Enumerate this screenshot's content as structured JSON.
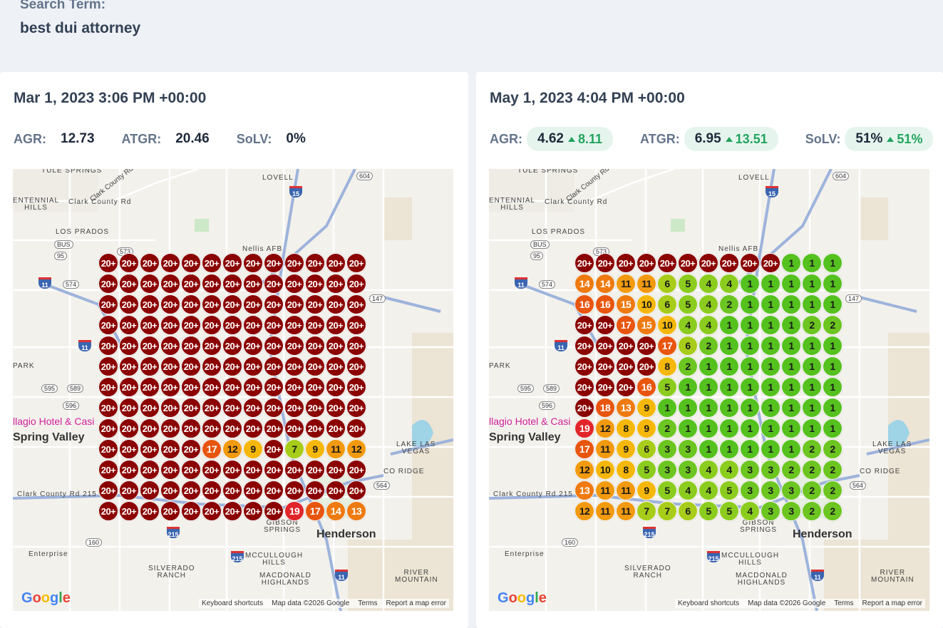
{
  "search": {
    "label": "Search Term:",
    "value": "best dui attorney"
  },
  "colors": {
    "accent_positive": "#22a45d",
    "pill_bg": "#e5f5ee",
    "panel_bg": "#ffffff",
    "page_bg": "#eef1f6"
  },
  "map_common": {
    "labels": {
      "tule_springs": "TULE SPRINGS",
      "lovell": "LOVELL",
      "centennial": "ENTENNIAL\nHILLS",
      "los_prados": "LOS PRADOS",
      "nellis": "Nellis AFB",
      "park": "PARK",
      "hotel": "llagio Hotel & Casi",
      "spring_valley": "Spring Valley",
      "lake_las_vegas": "LAKE LAS\nVEGAS",
      "co_ridge": "CO RIDGE",
      "gibson": "GIBSON\nSPRINGS",
      "henderson": "Henderson",
      "enterprise": "Enterprise",
      "silverado": "SILVERADO\nRANCH",
      "mccullough": "MCCULLOUGH\nHILLS",
      "macdonald": "MACDONALD\nHIGHLANDS",
      "river_mountain": "RIVER\nMOUNTAIN",
      "clark_rd_215_top": "Clark County Rd 215",
      "clark_rd": "Clark County Rd",
      "clark_rd_215_bottom": "Clark County Rd 215"
    },
    "shields": {
      "s604": "604",
      "s573": "573",
      "s95": "95",
      "s574": "574",
      "s147": "147",
      "s595": "595",
      "s589": "589",
      "s596": "596",
      "s564": "564",
      "s160": "160"
    },
    "interstates": {
      "i15a": "15",
      "i11a": "11",
      "i11b": "11",
      "i215a": "215",
      "i215b": "215",
      "i11c": "11",
      "bus": "BUS"
    },
    "google_logo": "Google",
    "attribution": {
      "keyboard": "Keyboard shortcuts",
      "map_data": "Map data ©2026 Google",
      "terms": "Terms",
      "report": "Report a map error"
    }
  },
  "panels": [
    {
      "date": "Mar 1, 2023 3:06 PM +00:00",
      "metrics": {
        "agr": {
          "label": "AGR:",
          "value": "12.73"
        },
        "atgr": {
          "label": "ATGR:",
          "value": "20.46"
        },
        "solv": {
          "label": "SoLV:",
          "value": "0%"
        }
      },
      "grid": [
        [
          "20+",
          "20+",
          "20+",
          "20+",
          "20+",
          "20+",
          "20+",
          "20+",
          "20+",
          "20+",
          "20+",
          "20+",
          "20+"
        ],
        [
          "20+",
          "20+",
          "20+",
          "20+",
          "20+",
          "20+",
          "20+",
          "20+",
          "20+",
          "20+",
          "20+",
          "20+",
          "20+"
        ],
        [
          "20+",
          "20+",
          "20+",
          "20+",
          "20+",
          "20+",
          "20+",
          "20+",
          "20+",
          "20+",
          "20+",
          "20+",
          "20+"
        ],
        [
          "20+",
          "20+",
          "20+",
          "20+",
          "20+",
          "20+",
          "20+",
          "20+",
          "20+",
          "20+",
          "20+",
          "20+",
          "20+"
        ],
        [
          "20+",
          "20+",
          "20+",
          "20+",
          "20+",
          "20+",
          "20+",
          "20+",
          "20+",
          "20+",
          "20+",
          "20+",
          "20+"
        ],
        [
          "20+",
          "20+",
          "20+",
          "20+",
          "20+",
          "20+",
          "20+",
          "20+",
          "20+",
          "20+",
          "20+",
          "20+",
          "20+"
        ],
        [
          "20+",
          "20+",
          "20+",
          "20+",
          "20+",
          "20+",
          "20+",
          "20+",
          "20+",
          "20+",
          "20+",
          "20+",
          "20+"
        ],
        [
          "20+",
          "20+",
          "20+",
          "20+",
          "20+",
          "20+",
          "20+",
          "20+",
          "20+",
          "20+",
          "20+",
          "20+",
          "20+"
        ],
        [
          "20+",
          "20+",
          "20+",
          "20+",
          "20+",
          "20+",
          "20+",
          "20+",
          "20+",
          "20+",
          "20+",
          "20+",
          "20+"
        ],
        [
          "20+",
          "20+",
          "20+",
          "20+",
          "20+",
          "17",
          "12",
          "9",
          "20+",
          "7",
          "9",
          "11",
          "12"
        ],
        [
          "20+",
          "20+",
          "20+",
          "20+",
          "20+",
          "20+",
          "20+",
          "20+",
          "20+",
          "20+",
          "20+",
          "20+",
          "20+"
        ],
        [
          "20+",
          "20+",
          "20+",
          "20+",
          "20+",
          "20+",
          "20+",
          "20+",
          "20+",
          "20+",
          "20+",
          "20+",
          "20+"
        ],
        [
          "20+",
          "20+",
          "20+",
          "20+",
          "20+",
          "20+",
          "20+",
          "20+",
          "20+",
          "19",
          "17",
          "14",
          "13"
        ]
      ]
    },
    {
      "date": "May 1, 2023 4:04 PM +00:00",
      "metrics": {
        "agr": {
          "label": "AGR:",
          "value": "4.62",
          "delta": "8.11"
        },
        "atgr": {
          "label": "ATGR:",
          "value": "6.95",
          "delta": "13.51"
        },
        "solv": {
          "label": "SoLV:",
          "value": "51%",
          "delta": "51%"
        }
      },
      "grid": [
        [
          "20+",
          "20+",
          "20+",
          "20+",
          "20+",
          "20+",
          "20+",
          "20+",
          "20+",
          "20+",
          "1",
          "1",
          "1"
        ],
        [
          "14",
          "14",
          "11",
          "11",
          "6",
          "5",
          "4",
          "4",
          "1",
          "1",
          "1",
          "1",
          "1"
        ],
        [
          "16",
          "16",
          "15",
          "10",
          "6",
          "5",
          "4",
          "2",
          "1",
          "1",
          "1",
          "1",
          "1"
        ],
        [
          "20+",
          "20+",
          "17",
          "15",
          "10",
          "4",
          "4",
          "1",
          "1",
          "1",
          "1",
          "2",
          "2"
        ],
        [
          "20+",
          "20+",
          "20+",
          "20+",
          "17",
          "6",
          "2",
          "1",
          "1",
          "1",
          "1",
          "1",
          "1"
        ],
        [
          "20+",
          "20+",
          "20+",
          "20+",
          "8",
          "2",
          "1",
          "1",
          "1",
          "1",
          "1",
          "1",
          "1"
        ],
        [
          "20+",
          "20+",
          "20+",
          "16",
          "5",
          "1",
          "1",
          "1",
          "1",
          "1",
          "1",
          "1",
          "1"
        ],
        [
          "20+",
          "18",
          "13",
          "9",
          "1",
          "1",
          "1",
          "1",
          "1",
          "1",
          "1",
          "1",
          "1"
        ],
        [
          "19",
          "12",
          "8",
          "9",
          "2",
          "1",
          "1",
          "1",
          "1",
          "1",
          "1",
          "1",
          "1"
        ],
        [
          "17",
          "11",
          "9",
          "6",
          "3",
          "3",
          "1",
          "1",
          "1",
          "1",
          "1",
          "2",
          "2"
        ],
        [
          "12",
          "10",
          "8",
          "5",
          "3",
          "3",
          "4",
          "4",
          "3",
          "3",
          "2",
          "2",
          "2"
        ],
        [
          "13",
          "11",
          "11",
          "9",
          "5",
          "4",
          "4",
          "5",
          "3",
          "3",
          "3",
          "2",
          "2"
        ],
        [
          "12",
          "11",
          "11",
          "7",
          "7",
          "6",
          "5",
          "5",
          "4",
          "3",
          "3",
          "2",
          "2"
        ]
      ]
    }
  ]
}
